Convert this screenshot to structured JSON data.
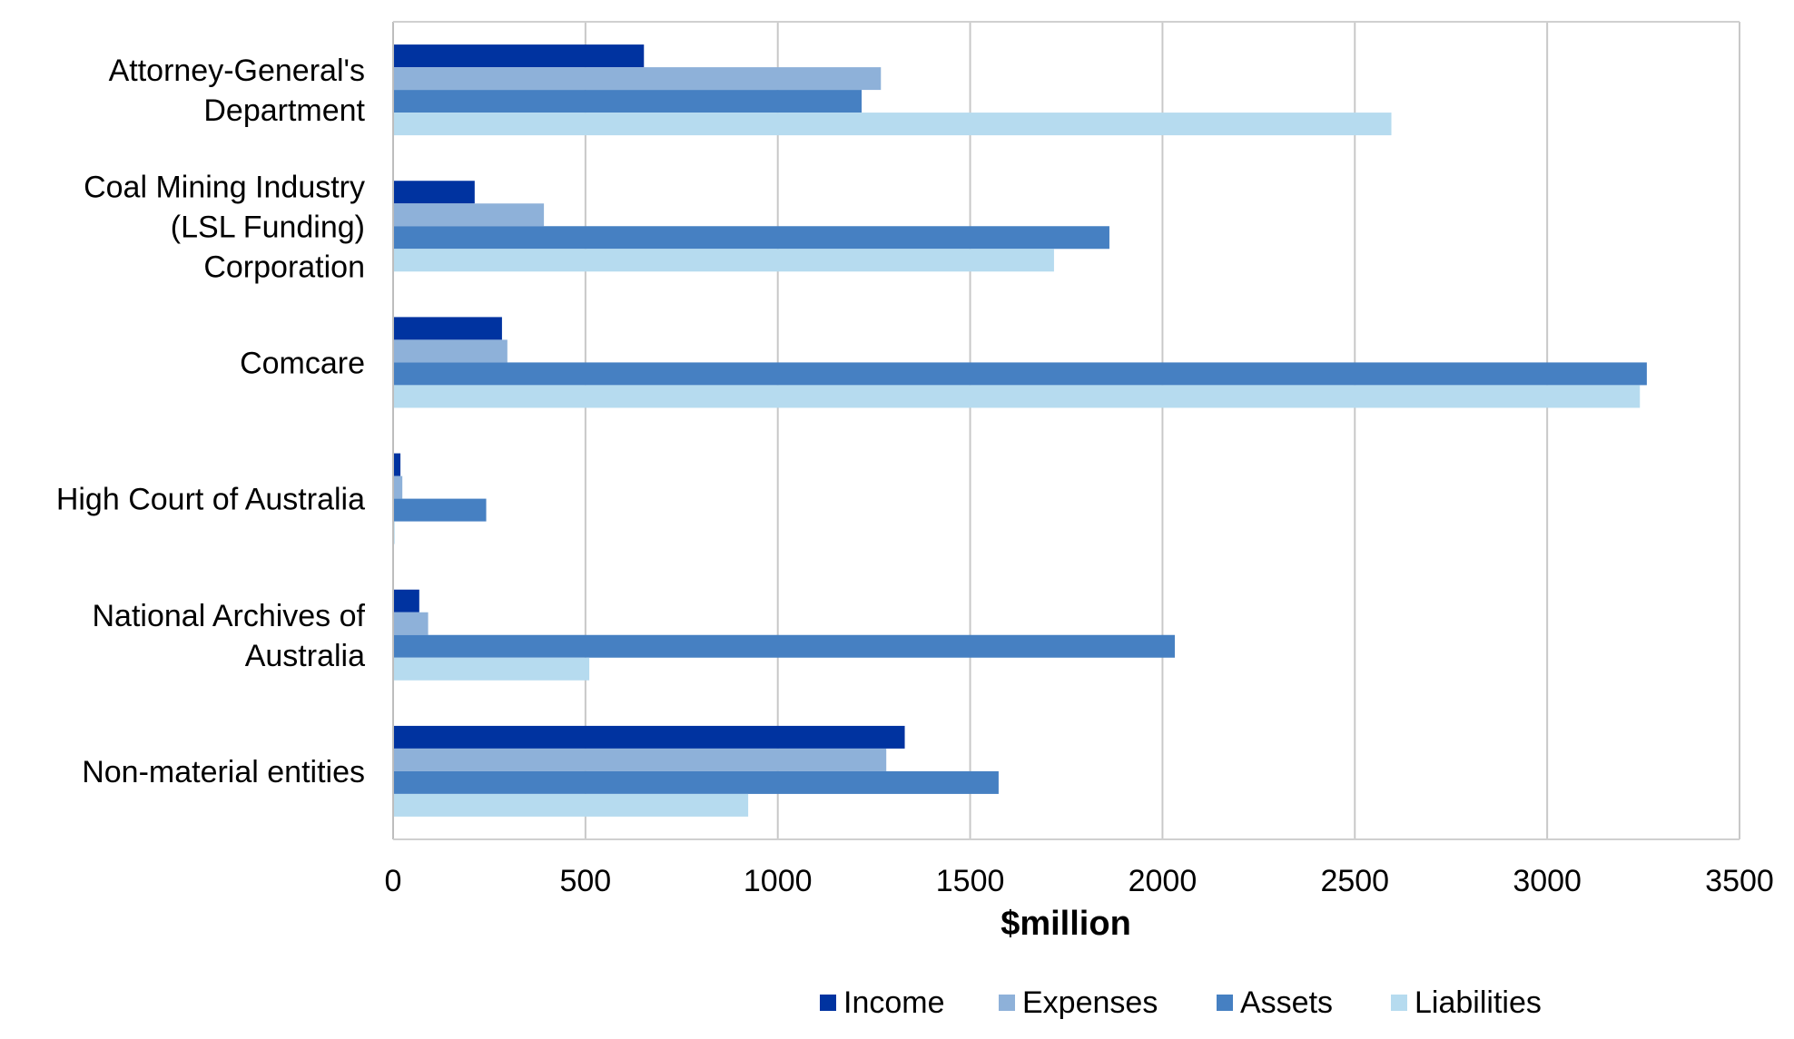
{
  "chart_data": {
    "type": "bar",
    "orientation": "horizontal",
    "title": "",
    "xlabel": "$million",
    "ylabel": "",
    "xlim": [
      0,
      3500
    ],
    "x_ticks": [
      0,
      500,
      1000,
      1500,
      2000,
      2500,
      3000,
      3500
    ],
    "grid": "vertical",
    "legend_position": "bottom",
    "categories": [
      [
        "Attorney-General's",
        "Department"
      ],
      [
        "Coal Mining Industry",
        "(LSL Funding)",
        "Corporation"
      ],
      [
        "Comcare"
      ],
      [
        "High Court of Australia"
      ],
      [
        "National Archives of",
        "Australia"
      ],
      [
        "Non-material entities"
      ]
    ],
    "series": [
      {
        "name": "Income",
        "color": "#0033a0",
        "values": [
          652,
          212,
          283,
          19,
          68,
          1330
        ]
      },
      {
        "name": "Expenses",
        "color": "#8eb1d9",
        "values": [
          1268,
          392,
          297,
          24,
          91,
          1282
        ]
      },
      {
        "name": "Assets",
        "color": "#4680c2",
        "values": [
          1218,
          1862,
          3259,
          242,
          2032,
          1574
        ]
      },
      {
        "name": "Liabilities",
        "color": "#b6dbef",
        "values": [
          2595,
          1718,
          3241,
          4,
          510,
          923
        ]
      }
    ]
  }
}
